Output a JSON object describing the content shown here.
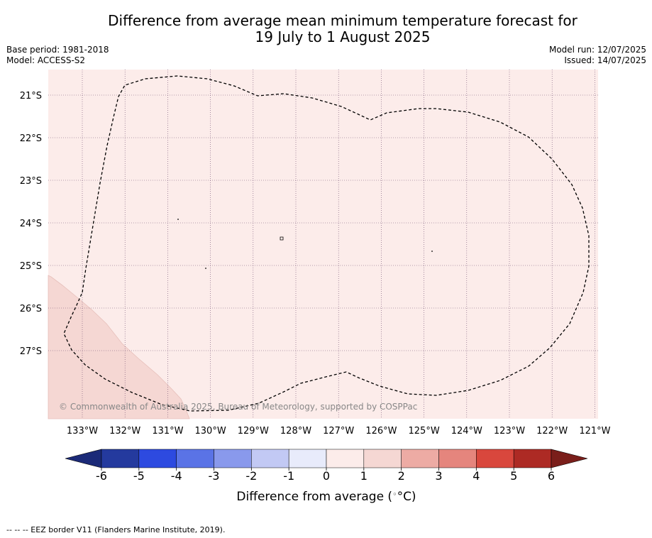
{
  "title": {
    "line1": "Difference from average mean minimum temperature forecast for",
    "line2": "19 July to 1 August 2025"
  },
  "info_left": {
    "base_period": "Base period: 1981-2018",
    "model": "Model: ACCESS-S2"
  },
  "info_right": {
    "model_run": "Model run: 12/07/2025",
    "issued": "Issued: 14/07/2025"
  },
  "map": {
    "lon_labels": [
      "133°W",
      "132°W",
      "131°W",
      "130°W",
      "129°W",
      "128°W",
      "127°W",
      "126°W",
      "125°W",
      "124°W",
      "123°W",
      "122°W",
      "121°W"
    ],
    "lat_labels": [
      "21°S",
      "22°S",
      "23°S",
      "24°S",
      "25°S",
      "26°S",
      "27°S"
    ],
    "credit": "© Commonwealth of Australia 2025, Bureau of Meteorology, supported by COSPPac",
    "anomaly_fill": {
      "main_region": "0 to 1",
      "southwest_region": "1 to 2"
    },
    "gridlines": true
  },
  "colorbar": {
    "ticks": [
      "-6",
      "-5",
      "-4",
      "-3",
      "-2",
      "-1",
      "0",
      "1",
      "2",
      "3",
      "4",
      "5",
      "6"
    ],
    "colors": [
      "#243a9e",
      "#2d4ae0",
      "#5a73e6",
      "#8999ec",
      "#c2c9f4",
      "#e8ebfb",
      "#fcecea",
      "#f5d7d3",
      "#edaba4",
      "#e5857d",
      "#d9473d",
      "#ad2a24"
    ],
    "under_color": "#1b2a78",
    "over_color": "#7a1e1a",
    "label": "Difference from average (",
    "label_unit": "°C)"
  },
  "footnote": "--  --  -- EEZ border V11 (Flanders Marine Institute, 2019)."
}
